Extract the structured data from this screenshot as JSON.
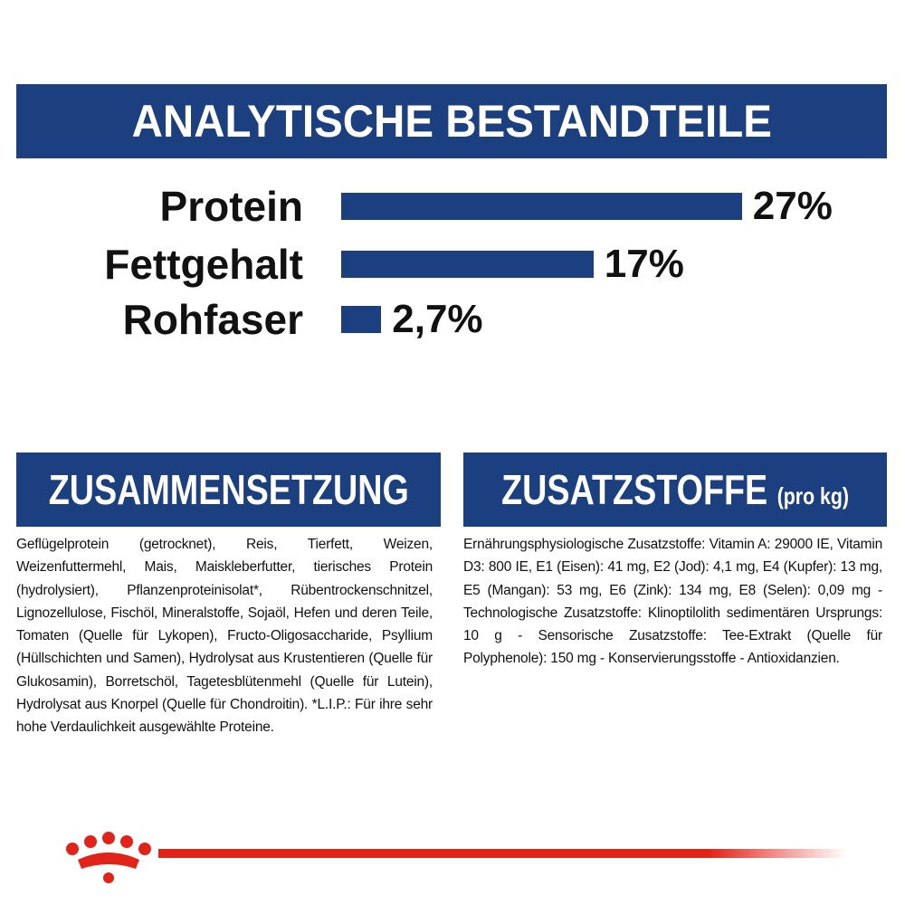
{
  "header": {
    "title": "ANALYTISCHE BESTANDTEILE"
  },
  "analysis": {
    "type": "bar",
    "categories": [
      "Protein",
      "Fettgehalt",
      "Rohfaser"
    ],
    "values": [
      27,
      17,
      2.7
    ],
    "value_labels": [
      "27%",
      "17%",
      "2,7%"
    ],
    "color": "#1b3f7f"
  },
  "composition": {
    "title": "ZUSAMMENSETZUNG",
    "text": "Geflügelprotein (getrocknet), Reis, Tierfett, Weizen, Weizenfuttermehl, Mais, Maiskleberfutter, tierisches Protein (hydrolysiert), Pflanzenproteinisolat*, Rübentrockenschnitzel, Lignozellulose, Fischöl, Mineralstoffe, Sojaöl, Hefen und deren Teile, Tomaten (Quelle für Lykopen), Fructo-Oligosaccharide, Psyllium (Hüllschichten und Samen), Hydrolysat aus Krustentieren (Quelle für Glukosamin), Borretschöl, Tagetesblütenmehl (Quelle für Lutein), Hydrolysat aus Knorpel (Quelle für Chondroitin). *L.I.P.: Für ihre sehr hohe Verdaulichkeit ausgewählte Proteine."
  },
  "additives": {
    "title": "ZUSATZSTOFFE",
    "title_suffix": "(pro kg)",
    "text": "Ernährungsphysiologische Zusatzstoffe: Vitamin A: 29000 IE, Vitamin D3: 800 IE, E1 (Eisen): 41 mg, E2 (Jod): 4,1 mg, E4 (Kupfer): 13 mg, E5 (Mangan): 53 mg, E6 (Zink): 134 mg, E8 (Selen): 0,09 mg - Technologische Zusatzstoffe: Klinoptilolith sedimentären Ursprungs: 10 g - Sensorische Zusatzstoffe: Tee-Extrakt (Quelle für Polyphenole): 150 mg - Konservierungsstoffe - Antioxidanzien."
  }
}
